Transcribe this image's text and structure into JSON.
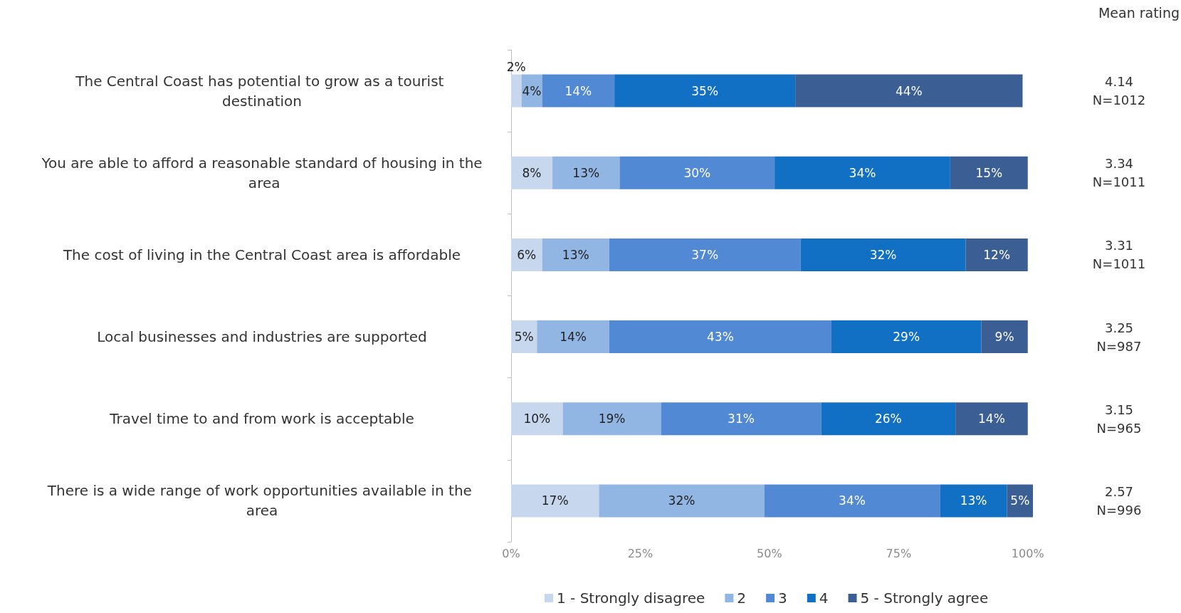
{
  "chart_data": {
    "type": "bar",
    "orientation": "horizontal",
    "stacked": true,
    "categories": [
      "The Central Coast has potential to grow as a tourist destination",
      "You are able to afford a reasonable standard of housing in the area",
      "The cost of living in the Central Coast area is affordable",
      "Local businesses and industries are supported",
      "Travel time to and from work is acceptable",
      "There is a wide range of work opportunities available in the area"
    ],
    "series": [
      {
        "name": "1 - Strongly disagree",
        "color": "#c6d7ee",
        "values": [
          2,
          8,
          6,
          5,
          10,
          17
        ],
        "value_labels": [
          "2%",
          "8%",
          "6%",
          "5%",
          "10%",
          "17%"
        ]
      },
      {
        "name": "2",
        "color": "#92b6e4",
        "values": [
          4,
          13,
          13,
          14,
          19,
          32
        ],
        "value_labels": [
          "4%",
          "13%",
          "13%",
          "14%",
          "19%",
          "32%"
        ]
      },
      {
        "name": "3",
        "color": "#5289d4",
        "values": [
          14,
          30,
          37,
          43,
          31,
          34
        ],
        "value_labels": [
          "14%",
          "30%",
          "37%",
          "43%",
          "31%",
          "34%"
        ]
      },
      {
        "name": "4",
        "color": "#1170c4",
        "values": [
          35,
          34,
          32,
          29,
          26,
          13
        ],
        "value_labels": [
          "35%",
          "34%",
          "32%",
          "29%",
          "26%",
          "13%"
        ]
      },
      {
        "name": "5 - Strongly agree",
        "color": "#3b5f95",
        "values": [
          44,
          15,
          12,
          9,
          14,
          5
        ],
        "value_labels": [
          "44%",
          "15%",
          "12%",
          "9%",
          "14%",
          "5%"
        ]
      }
    ],
    "xlim": [
      0,
      101
    ],
    "xticks": [
      {
        "value": 0,
        "label": "0%"
      },
      {
        "value": 25,
        "label": "25%"
      },
      {
        "value": 50,
        "label": "50%"
      },
      {
        "value": 75,
        "label": "75%"
      },
      {
        "value": 100,
        "label": "100%"
      }
    ],
    "grid": false,
    "legend": "bottom",
    "annotations": [
      "Mean rating",
      "4.14\nN=1012",
      "3.34\nN=1011",
      "3.31\nN=1011",
      "3.25\nN=987",
      "3.15\nN=965",
      "2.57\nN=996"
    ]
  }
}
